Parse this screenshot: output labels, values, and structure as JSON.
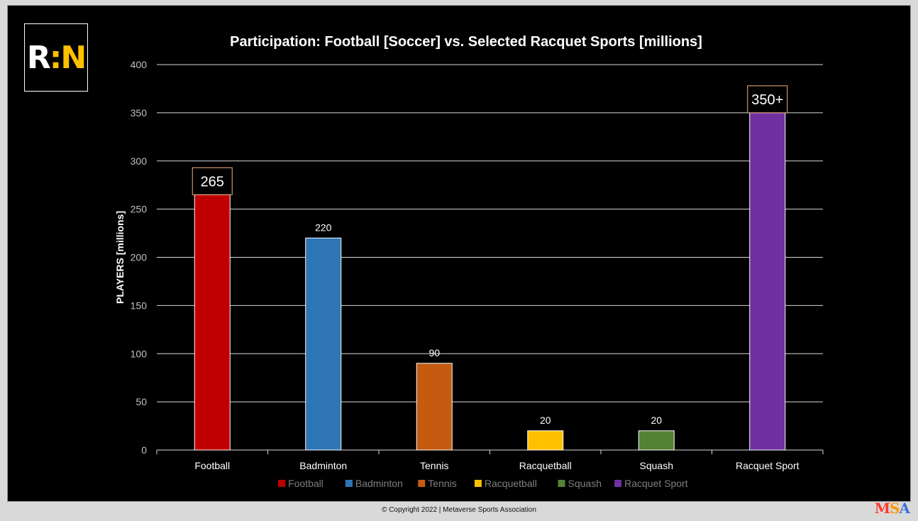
{
  "logo": {
    "left": "R",
    "colon": ":",
    "right": "N"
  },
  "footer": {
    "copyright": "© Copyright 2022 | Metaverse Sports Association"
  },
  "msa_logo": {
    "m": "M",
    "s": "S",
    "a": "A"
  },
  "chart_data": {
    "type": "bar",
    "title": "Participation: Football [Soccer] vs. Selected Racquet Sports [millions]",
    "xlabel": "",
    "ylabel": "PLAYERS [millions]",
    "ylim": [
      0,
      400
    ],
    "yticks": [
      0,
      50,
      100,
      150,
      200,
      250,
      300,
      350,
      400
    ],
    "grid": true,
    "legend_position": "bottom",
    "categories": [
      "Football",
      "Badminton",
      "Tennis",
      "Racquetball",
      "Squash",
      "Racquet Sport"
    ],
    "values": [
      265,
      220,
      90,
      20,
      20,
      350
    ],
    "data_labels": [
      "265",
      "220",
      "90",
      "20",
      "20",
      "350+"
    ],
    "highlighted_labels": [
      true,
      false,
      false,
      false,
      false,
      true
    ],
    "colors": [
      "#c00000",
      "#2e75b6",
      "#c55a11",
      "#ffc000",
      "#548235",
      "#7030a0"
    ],
    "legend": [
      "Football",
      "Badminton",
      "Tennis",
      "Racquetball",
      "Squash",
      "Racquet Sport"
    ]
  }
}
